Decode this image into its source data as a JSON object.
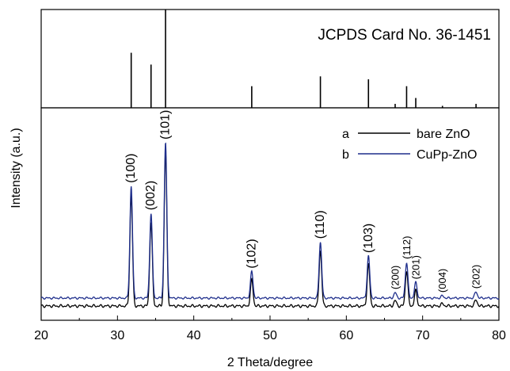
{
  "chart_data": {
    "type": "line",
    "xlabel": "2 Theta/degree",
    "ylabel": "Intensity (a.u.)",
    "xlim": [
      20,
      80
    ],
    "x_ticks": [
      20,
      30,
      40,
      50,
      60,
      70,
      80
    ],
    "reference": {
      "label": "JCPDS Card No. 36-1451",
      "lines": [
        {
          "x": 31.8,
          "h": 0.56
        },
        {
          "x": 34.4,
          "h": 0.44
        },
        {
          "x": 36.3,
          "h": 1.0
        },
        {
          "x": 47.6,
          "h": 0.22
        },
        {
          "x": 56.6,
          "h": 0.32
        },
        {
          "x": 62.9,
          "h": 0.29
        },
        {
          "x": 66.4,
          "h": 0.04
        },
        {
          "x": 67.9,
          "h": 0.22
        },
        {
          "x": 69.1,
          "h": 0.1
        },
        {
          "x": 72.6,
          "h": 0.02
        },
        {
          "x": 77.0,
          "h": 0.04
        }
      ]
    },
    "series": [
      {
        "name": "bare ZnO",
        "tag": "a",
        "color": "#000000"
      },
      {
        "name": "CuPp-ZnO",
        "tag": "b",
        "color": "#1f2f8c"
      }
    ],
    "peaks": [
      {
        "x": 31.8,
        "label": "(100)",
        "h": 0.72
      },
      {
        "x": 34.4,
        "label": "(002)",
        "h": 0.545
      },
      {
        "x": 36.3,
        "label": "(101)",
        "h": 1.0
      },
      {
        "x": 47.6,
        "label": "(102)",
        "h": 0.17
      },
      {
        "x": 56.6,
        "label": "(110)",
        "h": 0.36
      },
      {
        "x": 62.9,
        "label": "(103)",
        "h": 0.27
      },
      {
        "x": 66.4,
        "label": "(200)",
        "h": 0.035
      },
      {
        "x": 67.9,
        "label": "(112)",
        "h": 0.23
      },
      {
        "x": 69.1,
        "label": "(201)",
        "h": 0.1
      },
      {
        "x": 72.6,
        "label": "(004)",
        "h": 0.015
      },
      {
        "x": 77.0,
        "label": "(202)",
        "h": 0.04
      }
    ]
  }
}
